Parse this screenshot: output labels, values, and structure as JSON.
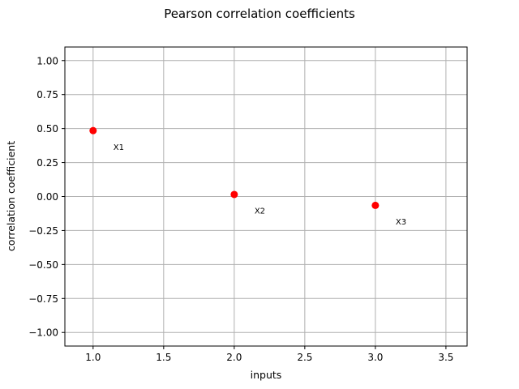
{
  "chart_data": {
    "type": "scatter",
    "title": "Pearson correlation coefficients",
    "xlabel": "inputs",
    "ylabel": "correlation coefficient",
    "xlim": [
      0.8,
      3.65
    ],
    "ylim": [
      -1.1,
      1.1
    ],
    "x_ticks": [
      1.0,
      1.5,
      2.0,
      2.5,
      3.0,
      3.5
    ],
    "x_tick_labels": [
      "1.0",
      "1.5",
      "2.0",
      "2.5",
      "3.0",
      "3.5"
    ],
    "y_ticks": [
      1.0,
      0.75,
      0.5,
      0.25,
      0.0,
      -0.25,
      -0.5,
      -0.75,
      -1.0
    ],
    "y_tick_labels": [
      "1.00",
      "0.75",
      "0.50",
      "0.25",
      "0.00",
      "−0.25",
      "−0.50",
      "−0.75",
      "−1.00"
    ],
    "grid": true,
    "marker_color": "#ff0000",
    "points": [
      {
        "x": 1.0,
        "y": 0.485,
        "label": "X1"
      },
      {
        "x": 2.0,
        "y": 0.015,
        "label": "X2"
      },
      {
        "x": 3.0,
        "y": -0.065,
        "label": "X3"
      }
    ]
  }
}
